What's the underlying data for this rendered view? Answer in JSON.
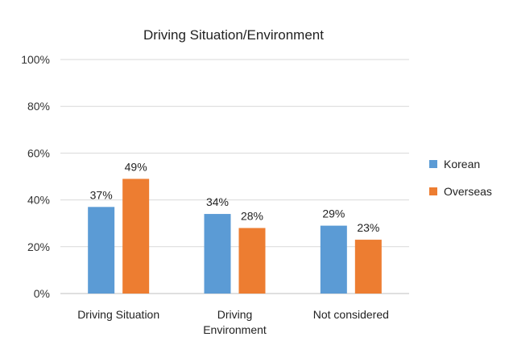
{
  "chart_data": {
    "type": "bar",
    "title": "Driving Situation/Environment",
    "categories": [
      [
        "Driving Situation"
      ],
      [
        "Driving",
        "Environment"
      ],
      [
        "Not considered"
      ]
    ],
    "series": [
      {
        "name": "Korean",
        "values": [
          37,
          34,
          29
        ],
        "color": "#5b9bd5"
      },
      {
        "name": "Overseas",
        "values": [
          49,
          28,
          23
        ],
        "color": "#ed7d31"
      }
    ],
    "ylim": [
      0,
      100
    ],
    "yticks": [
      0,
      20,
      40,
      60,
      80,
      100
    ],
    "ytick_labels": [
      "0%",
      "20%",
      "40%",
      "60%",
      "80%",
      "100%"
    ],
    "value_suffix": "%",
    "grid": true,
    "legend_position": "right",
    "gridline_color": "#d9d9d9",
    "axis_color": "#bfbfbf"
  }
}
